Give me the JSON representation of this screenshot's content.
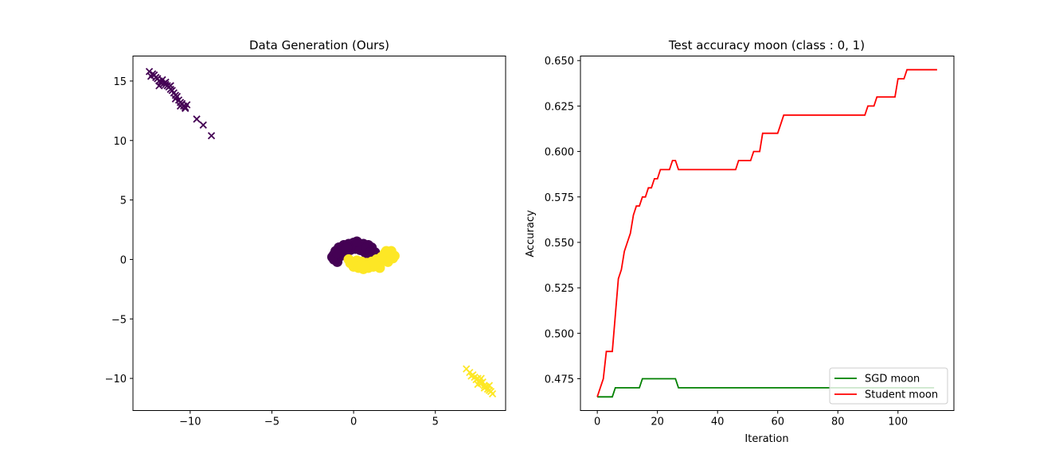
{
  "chart_data": [
    {
      "type": "scatter",
      "title": "Data Generation (Ours)",
      "xlabel": "",
      "ylabel": "",
      "xlim": [
        -13.5,
        9.3
      ],
      "ylim": [
        -12.7,
        17.1
      ],
      "xticks": [
        -10,
        -5,
        0,
        5
      ],
      "yticks": [
        -10,
        -5,
        0,
        5,
        10,
        15
      ],
      "tick_labels_x": [
        "−10",
        "−5",
        "0",
        "5"
      ],
      "tick_labels_y": [
        "−10",
        "−5",
        "0",
        "5",
        "10",
        "15"
      ],
      "grid": false,
      "colors": {
        "class0": "#440154",
        "class1": "#fde725"
      },
      "series": [
        {
          "class": 0,
          "marker": "x",
          "points": [
            [
              -12.5,
              15.8
            ],
            [
              -12.3,
              15.6
            ],
            [
              -12.2,
              15.5
            ],
            [
              -12.1,
              15.3
            ],
            [
              -12.0,
              15.2
            ],
            [
              -11.9,
              15.0
            ],
            [
              -11.8,
              14.9
            ],
            [
              -11.7,
              15.1
            ],
            [
              -11.6,
              14.8
            ],
            [
              -11.5,
              14.7
            ],
            [
              -11.4,
              14.6
            ],
            [
              -11.3,
              14.5
            ],
            [
              -11.5,
              14.9
            ],
            [
              -11.2,
              14.3
            ],
            [
              -11.1,
              14.2
            ],
            [
              -11.0,
              14.0
            ],
            [
              -10.9,
              13.8
            ],
            [
              -10.8,
              13.7
            ],
            [
              -10.9,
              13.5
            ],
            [
              -10.7,
              13.4
            ],
            [
              -10.6,
              13.2
            ],
            [
              -10.5,
              13.1
            ],
            [
              -10.4,
              12.9
            ],
            [
              -10.3,
              12.8
            ],
            [
              -10.6,
              12.9
            ],
            [
              -10.2,
              13.0
            ],
            [
              -10.3,
              12.7
            ],
            [
              -11.2,
              14.6
            ],
            [
              -11.9,
              14.6
            ],
            [
              -12.4,
              15.4
            ],
            [
              -9.6,
              11.8
            ],
            [
              -9.2,
              11.3
            ],
            [
              -8.7,
              10.4
            ]
          ]
        },
        {
          "class": 0,
          "marker": "o",
          "points": [
            [
              -1.2,
              0.0
            ],
            [
              -1.2,
              0.4
            ],
            [
              -1.1,
              0.7
            ],
            [
              -0.9,
              1.0
            ],
            [
              -0.6,
              1.2
            ],
            [
              -0.3,
              1.3
            ],
            [
              0.0,
              1.4
            ],
            [
              0.3,
              1.3
            ],
            [
              0.6,
              1.3
            ],
            [
              0.9,
              1.2
            ],
            [
              1.1,
              1.0
            ],
            [
              1.3,
              0.6
            ],
            [
              1.3,
              0.3
            ],
            [
              1.2,
              0.1
            ],
            [
              -1.0,
              -0.2
            ],
            [
              -0.8,
              0.3
            ],
            [
              -0.5,
              0.6
            ],
            [
              -0.2,
              0.8
            ],
            [
              0.1,
              0.9
            ],
            [
              0.4,
              0.8
            ],
            [
              0.7,
              0.6
            ],
            [
              0.9,
              0.4
            ],
            [
              1.1,
              0.2
            ],
            [
              -1.3,
              0.2
            ],
            [
              -0.7,
              0.9
            ],
            [
              0.2,
              1.5
            ],
            [
              0.8,
              1.0
            ],
            [
              1.0,
              0.6
            ],
            [
              -1.0,
              0.5
            ],
            [
              -0.4,
              1.0
            ]
          ]
        },
        {
          "class": 1,
          "marker": "o",
          "points": [
            [
              -0.3,
              0.0
            ],
            [
              -0.2,
              -0.3
            ],
            [
              0.0,
              -0.6
            ],
            [
              0.3,
              -0.7
            ],
            [
              0.6,
              -0.8
            ],
            [
              0.9,
              -0.7
            ],
            [
              1.2,
              -0.6
            ],
            [
              1.5,
              -0.4
            ],
            [
              1.8,
              -0.1
            ],
            [
              2.0,
              0.2
            ],
            [
              2.2,
              0.4
            ],
            [
              2.3,
              0.7
            ],
            [
              2.4,
              0.1
            ],
            [
              2.1,
              -0.2
            ],
            [
              1.9,
              0.5
            ],
            [
              1.7,
              0.2
            ],
            [
              1.4,
              0.0
            ],
            [
              1.1,
              -0.2
            ],
            [
              0.8,
              -0.3
            ],
            [
              0.5,
              -0.2
            ],
            [
              0.2,
              -0.1
            ],
            [
              1.6,
              -0.7
            ],
            [
              0.4,
              -0.5
            ],
            [
              2.5,
              0.3
            ],
            [
              1.3,
              -0.4
            ],
            [
              0.7,
              -0.6
            ],
            [
              2.0,
              0.7
            ]
          ]
        },
        {
          "class": 1,
          "marker": "x",
          "points": [
            [
              6.9,
              -9.2
            ],
            [
              7.1,
              -9.5
            ],
            [
              7.3,
              -9.7
            ],
            [
              7.4,
              -9.9
            ],
            [
              7.6,
              -10.0
            ],
            [
              7.7,
              -10.2
            ],
            [
              7.8,
              -10.4
            ],
            [
              7.9,
              -10.3
            ],
            [
              8.0,
              -10.6
            ],
            [
              8.1,
              -10.7
            ],
            [
              8.2,
              -10.9
            ],
            [
              8.3,
              -11.0
            ],
            [
              8.4,
              -11.1
            ],
            [
              8.5,
              -11.3
            ],
            [
              7.5,
              -10.1
            ],
            [
              7.8,
              -10.0
            ],
            [
              8.0,
              -10.8
            ],
            [
              8.3,
              -10.6
            ],
            [
              7.2,
              -9.8
            ],
            [
              7.6,
              -10.5
            ]
          ]
        }
      ]
    },
    {
      "type": "line",
      "title": "Test accuracy moon (class : 0, 1)",
      "xlabel": "Iteration",
      "ylabel": "Accuracy",
      "xlim": [
        -5.6,
        118.6
      ],
      "ylim": [
        0.4575,
        0.6525
      ],
      "xticks": [
        0,
        20,
        40,
        60,
        80,
        100
      ],
      "yticks": [
        0.475,
        0.5,
        0.525,
        0.55,
        0.575,
        0.6,
        0.625,
        0.65
      ],
      "tick_labels_x": [
        "0",
        "20",
        "40",
        "60",
        "80",
        "100"
      ],
      "tick_labels_y": [
        "0.475",
        "0.500",
        "0.525",
        "0.550",
        "0.575",
        "0.600",
        "0.625",
        "0.650"
      ],
      "grid": false,
      "legend_position": "bottom-right",
      "series": [
        {
          "name": "SGD moon",
          "color": "#008000",
          "x": [
            0,
            5,
            6,
            14,
            15,
            26,
            27,
            112
          ],
          "y": [
            0.465,
            0.465,
            0.47,
            0.47,
            0.475,
            0.475,
            0.47,
            0.47
          ]
        },
        {
          "name": "Student moon",
          "color": "#ff0000",
          "x": [
            0,
            1,
            2,
            3,
            4,
            5,
            6,
            7,
            8,
            9,
            10,
            11,
            12,
            13,
            14,
            15,
            16,
            17,
            18,
            19,
            20,
            21,
            22,
            23,
            24,
            25,
            26,
            27,
            28,
            46,
            47,
            51,
            52,
            54,
            55,
            60,
            61,
            62,
            89,
            90,
            91,
            92,
            93,
            99,
            100,
            102,
            103,
            113
          ],
          "y": [
            0.465,
            0.47,
            0.475,
            0.49,
            0.49,
            0.49,
            0.51,
            0.53,
            0.535,
            0.545,
            0.55,
            0.555,
            0.565,
            0.57,
            0.57,
            0.575,
            0.575,
            0.58,
            0.58,
            0.585,
            0.585,
            0.59,
            0.59,
            0.59,
            0.59,
            0.595,
            0.595,
            0.59,
            0.59,
            0.59,
            0.595,
            0.595,
            0.6,
            0.6,
            0.61,
            0.61,
            0.615,
            0.62,
            0.62,
            0.625,
            0.625,
            0.625,
            0.63,
            0.63,
            0.64,
            0.64,
            0.645,
            0.645
          ]
        }
      ]
    }
  ]
}
